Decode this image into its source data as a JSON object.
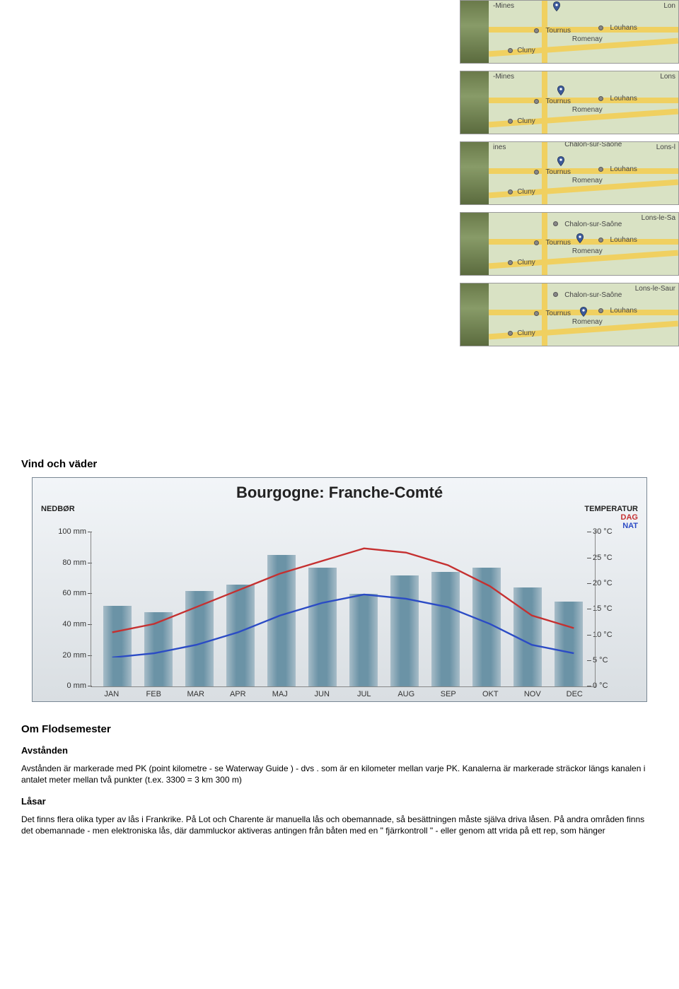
{
  "maps": {
    "pin_color": "#3c5a9a",
    "road_color": "#f0d060",
    "land_color": "#d9e2c4",
    "labels": {
      "mines": "-Mines",
      "ines": "ines",
      "tournus": "Tournus",
      "louhans": "Louhans",
      "romenay": "Romenay",
      "cluny": "Cluny",
      "lon": "Lon",
      "lons": "Lons",
      "lonsl": "Lons-l",
      "lonslesa": "Lons-le-Sa",
      "lonslesaur": "Lons-le-Saur",
      "chalon": "Chalon-sur-Saône"
    },
    "items": [
      {
        "pin_pct": [
          36,
          18
        ],
        "top": "-Mines",
        "right": "Lon",
        "show_chalon": false
      },
      {
        "pin_pct": [
          38,
          40
        ],
        "top": "-Mines",
        "right": "Lons",
        "show_chalon": false
      },
      {
        "pin_pct": [
          38,
          40
        ],
        "top": "ines",
        "right": "Lons-l",
        "show_chalon": false,
        "half_chalon": true
      },
      {
        "pin_pct": [
          48,
          50
        ],
        "top": "",
        "right": "Lons-le-Sa",
        "show_chalon": true
      },
      {
        "pin_pct": [
          50,
          55
        ],
        "top": "",
        "right": "Lons-le-Saur",
        "show_chalon": true
      }
    ]
  },
  "sections": {
    "vind_vader": "Vind och väder",
    "om_flodsemester": "Om Flodsemester",
    "avstanden": "Avstånden",
    "lasar": "Låsar"
  },
  "paragraphs": {
    "avstanden": "Avstånden är markerade med PK (point kilometre - se Waterway Guide ) - dvs . som är en kilometer mellan varje PK. Kanalerna är markerade sträckor längs kanalen i antalet meter mellan två punkter (t.ex. 3300 = 3 km 300 m)",
    "lasar": "Det finns flera olika typer av lås i Frankrike. På Lot och Charente är manuella lås och obemannade, så besättningen måste själva driva låsen. På andra områden finns det obemannade - men elektroniska lås, där dammluckor aktiveras antingen från båten med en \" fjärrkontroll \" - eller genom att vrida på ett rep, som hänger"
  },
  "chart": {
    "type": "bar+line",
    "title": "Bourgogne: Franche-Comté",
    "left_axis_title": "NEDBØR",
    "right_axis_title": "TEMPERATUR",
    "legend_dag": "DAG",
    "legend_nat": "NAT",
    "months": [
      "JAN",
      "FEB",
      "MAR",
      "APR",
      "MAJ",
      "JUN",
      "JUL",
      "AUG",
      "SEP",
      "OKT",
      "NOV",
      "DEC"
    ],
    "precip_mm": [
      52,
      48,
      62,
      66,
      85,
      77,
      60,
      72,
      74,
      77,
      64,
      55
    ],
    "temp_day_c": [
      6,
      8,
      12,
      16,
      20,
      23,
      26,
      25,
      22,
      17,
      10,
      7
    ],
    "temp_night_c": [
      0,
      1,
      3,
      6,
      10,
      13,
      15,
      14,
      12,
      8,
      3,
      1
    ],
    "y_left": {
      "min": 0,
      "max": 100,
      "step": 20,
      "unit": "mm"
    },
    "y_right": {
      "min": 0,
      "max": 30,
      "step": 5,
      "unit": "°C"
    },
    "bar_color": "#6b93a6",
    "day_line_color": "#c53030",
    "night_line_color": "#2b4bc5",
    "background_gradient": [
      "#f2f5f8",
      "#d9dee2"
    ],
    "border_color": "#7a8894",
    "title_fontsize": 22,
    "axis_fontsize": 11
  }
}
